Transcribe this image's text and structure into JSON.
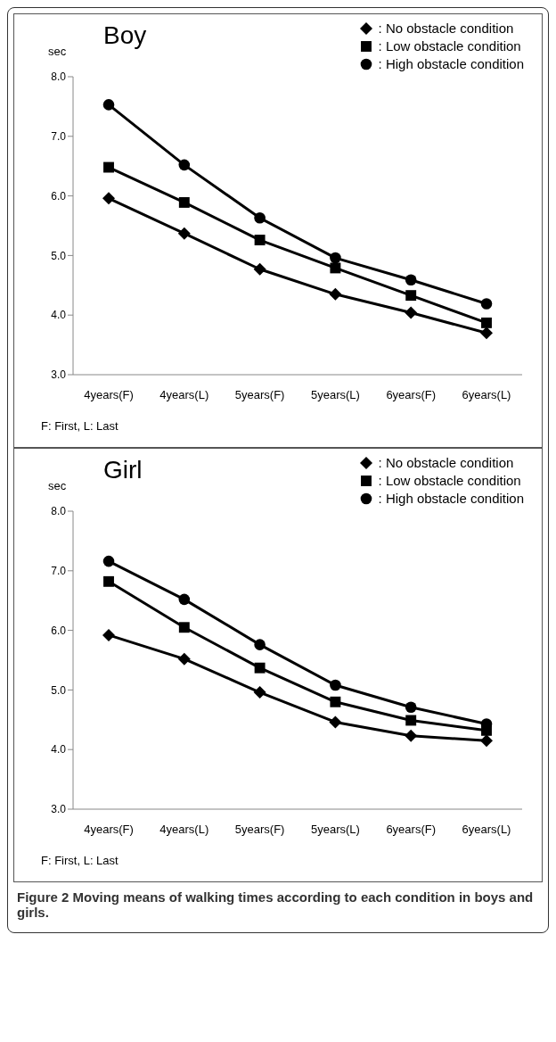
{
  "chart_data": [
    {
      "type": "line",
      "title": "Boy",
      "ylabel": "sec",
      "categories": [
        "4years(F)",
        "4years(L)",
        "5years(F)",
        "5years(L)",
        "6years(F)",
        "6years(L)"
      ],
      "series": [
        {
          "name": ": No obstacle condition",
          "color": "#000000",
          "marker": "diamond",
          "values": [
            5.96,
            5.37,
            4.77,
            4.35,
            4.04,
            3.7
          ]
        },
        {
          "name": ": Low obstacle condition",
          "color": "#000000",
          "marker": "square",
          "values": [
            6.48,
            5.89,
            5.26,
            4.79,
            4.33,
            3.87
          ]
        },
        {
          "name": ": High obstacle condition",
          "color": "#000000",
          "marker": "circle",
          "values": [
            7.53,
            6.52,
            5.63,
            4.96,
            4.59,
            4.19
          ]
        }
      ],
      "ylim": [
        3,
        8
      ],
      "yticks": [
        {
          "value": 3,
          "label": "3.0"
        },
        {
          "value": 4,
          "label": "4.0"
        },
        {
          "value": 5,
          "label": "5.0"
        },
        {
          "value": 6,
          "label": "6.0"
        },
        {
          "value": 7,
          "label": "7.0"
        },
        {
          "value": 8,
          "label": "8.0"
        }
      ],
      "legend": "top right",
      "grid": false,
      "line_style": "solid",
      "annotations": [
        "F: First, L: Last"
      ]
    },
    {
      "type": "line",
      "title": "Girl",
      "ylabel": "sec",
      "categories": [
        "4years(F)",
        "4years(L)",
        "5years(F)",
        "5years(L)",
        "6years(F)",
        "6years(L)"
      ],
      "series": [
        {
          "name": ": No obstacle condition",
          "color": "#000000",
          "marker": "diamond",
          "values": [
            5.92,
            5.52,
            4.96,
            4.46,
            4.23,
            4.15
          ]
        },
        {
          "name": ": Low obstacle condition",
          "color": "#000000",
          "marker": "square",
          "values": [
            6.82,
            6.05,
            5.37,
            4.8,
            4.49,
            4.32
          ]
        },
        {
          "name": ": High obstacle condition",
          "color": "#000000",
          "marker": "circle",
          "values": [
            7.16,
            6.52,
            5.76,
            5.08,
            4.71,
            4.43
          ]
        }
      ],
      "ylim": [
        3,
        8
      ],
      "yticks": [
        {
          "value": 3,
          "label": "3.0"
        },
        {
          "value": 4,
          "label": "4.0"
        },
        {
          "value": 5,
          "label": "5.0"
        },
        {
          "value": 6,
          "label": "6.0"
        },
        {
          "value": 7,
          "label": "7.0"
        },
        {
          "value": 8,
          "label": "8.0"
        }
      ],
      "legend": "top right",
      "grid": false,
      "line_style": "solid",
      "annotations": [
        "F: First, L: Last",
        "Figure 2 Moving means of walking times according to each condition in boys and girls."
      ]
    }
  ]
}
